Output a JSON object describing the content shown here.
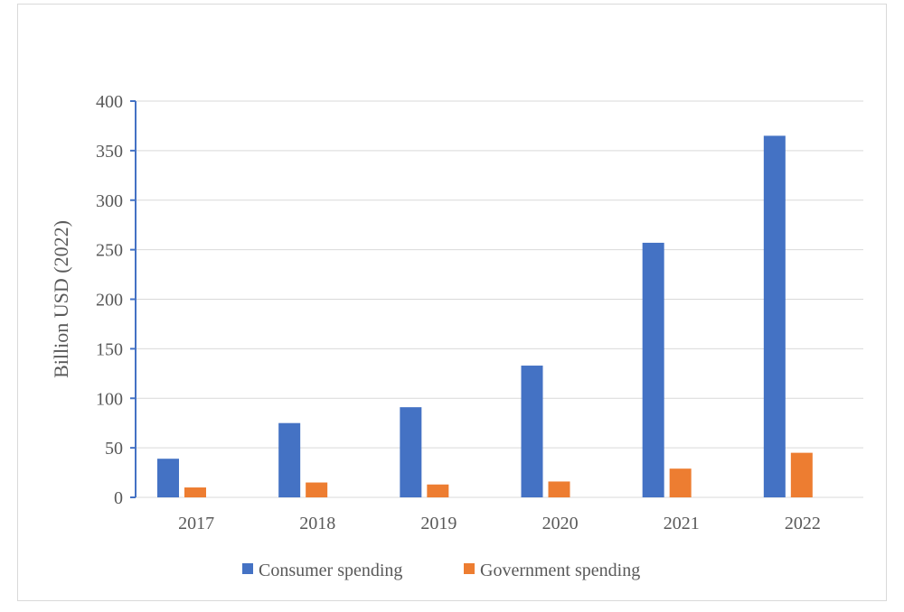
{
  "chart_data": {
    "type": "bar",
    "categories": [
      "2017",
      "2018",
      "2019",
      "2020",
      "2021",
      "2022"
    ],
    "series": [
      {
        "name": "Consumer spending",
        "values": [
          39,
          75,
          91,
          133,
          257,
          365
        ],
        "color": "#4472c4"
      },
      {
        "name": "Government spending",
        "values": [
          10,
          15,
          13,
          16,
          29,
          45
        ],
        "color": "#ed7d31"
      }
    ],
    "title": "",
    "xlabel": "",
    "ylabel": "Billion USD (2022)",
    "ylim": [
      0,
      400
    ],
    "yticks": [
      0,
      50,
      100,
      150,
      200,
      250,
      300,
      350,
      400
    ],
    "grid": true,
    "legend_position": "bottom",
    "colors": {
      "gridline": "#d9d9d9",
      "axis": "#4472c4",
      "text": "#595959"
    }
  }
}
